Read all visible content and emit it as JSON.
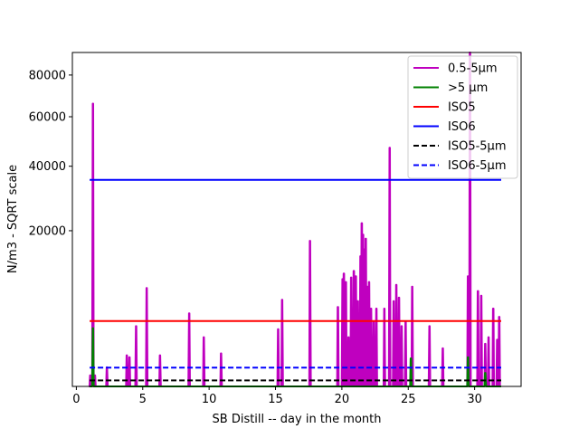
{
  "chart_data": {
    "type": "line",
    "title": "",
    "xlabel": "SB Distill -- day in the month",
    "ylabel": "N/m3 - SQRT scale",
    "y_scale": "sqrt",
    "xlim": [
      -0.3,
      33.5
    ],
    "ylim": [
      0,
      92000
    ],
    "x_ticks": [
      0,
      5,
      10,
      15,
      20,
      25,
      30
    ],
    "x_tick_labels": [
      "0",
      "5",
      "10",
      "15",
      "20",
      "25",
      "30"
    ],
    "y_ticks": [
      20000,
      40000,
      60000,
      80000
    ],
    "y_tick_labels": [
      "20000",
      "40000",
      "60000",
      "80000"
    ],
    "legend_position": "top-right",
    "series": [
      {
        "name": "0.5-5µm",
        "color": "#bf00bf",
        "dash": "solid",
        "spikes": [
          [
            1.05,
            100
          ],
          [
            1.25,
            66000
          ],
          [
            1.4,
            100
          ],
          [
            2.3,
            300
          ],
          [
            3.8,
            800
          ],
          [
            4.0,
            700
          ],
          [
            4.5,
            3000
          ],
          [
            5.3,
            8000
          ],
          [
            6.3,
            800
          ],
          [
            8.5,
            4400
          ],
          [
            9.6,
            2000
          ],
          [
            10.9,
            900
          ],
          [
            15.2,
            2700
          ],
          [
            15.5,
            6200
          ],
          [
            17.6,
            17500
          ],
          [
            19.7,
            5200
          ],
          [
            20.05,
            9500
          ],
          [
            20.15,
            10500
          ],
          [
            20.3,
            9000
          ],
          [
            20.5,
            2000
          ],
          [
            20.7,
            9800
          ],
          [
            20.9,
            11000
          ],
          [
            21.05,
            10000
          ],
          [
            21.2,
            6000
          ],
          [
            21.4,
            14000
          ],
          [
            21.5,
            22000
          ],
          [
            21.6,
            19000
          ],
          [
            21.7,
            15500
          ],
          [
            21.8,
            18000
          ],
          [
            21.95,
            8200
          ],
          [
            22.05,
            9000
          ],
          [
            22.2,
            5000
          ],
          [
            22.4,
            3500
          ],
          [
            22.6,
            5000
          ],
          [
            23.2,
            5000
          ],
          [
            23.6,
            47000
          ],
          [
            23.9,
            6000
          ],
          [
            24.1,
            8500
          ],
          [
            24.3,
            6500
          ],
          [
            24.5,
            3000
          ],
          [
            24.8,
            3500
          ],
          [
            25.3,
            8200
          ],
          [
            26.6,
            3000
          ],
          [
            27.6,
            1200
          ],
          [
            29.5,
            10000
          ],
          [
            29.65,
            92000
          ],
          [
            30.25,
            7500
          ],
          [
            30.5,
            6800
          ],
          [
            30.8,
            1500
          ],
          [
            31.05,
            2000
          ],
          [
            31.4,
            5000
          ],
          [
            31.7,
            1800
          ],
          [
            31.85,
            4000
          ]
        ]
      },
      {
        "name": ">5 µm",
        "color": "#008000",
        "dash": "solid",
        "spikes": [
          [
            1.25,
            2800
          ],
          [
            25.2,
            650
          ],
          [
            29.5,
            700
          ],
          [
            30.8,
            150
          ]
        ]
      },
      {
        "name": "ISO5",
        "color": "#ff0000",
        "dash": "solid",
        "x": [
          1.0,
          32.0
        ],
        "y": [
          3520,
          3520
        ]
      },
      {
        "name": "ISO6",
        "color": "#0000ff",
        "dash": "solid",
        "x": [
          1.0,
          32.0
        ],
        "y": [
          35200,
          35200
        ]
      },
      {
        "name": "ISO5-5µm",
        "color": "#000000",
        "dash": "dashed",
        "x": [
          1.0,
          32.0
        ],
        "y": [
          29,
          29
        ]
      },
      {
        "name": "ISO6-5µm",
        "color": "#0000ff",
        "dash": "dashed",
        "x": [
          1.0,
          32.0
        ],
        "y": [
          293,
          293
        ]
      }
    ]
  }
}
